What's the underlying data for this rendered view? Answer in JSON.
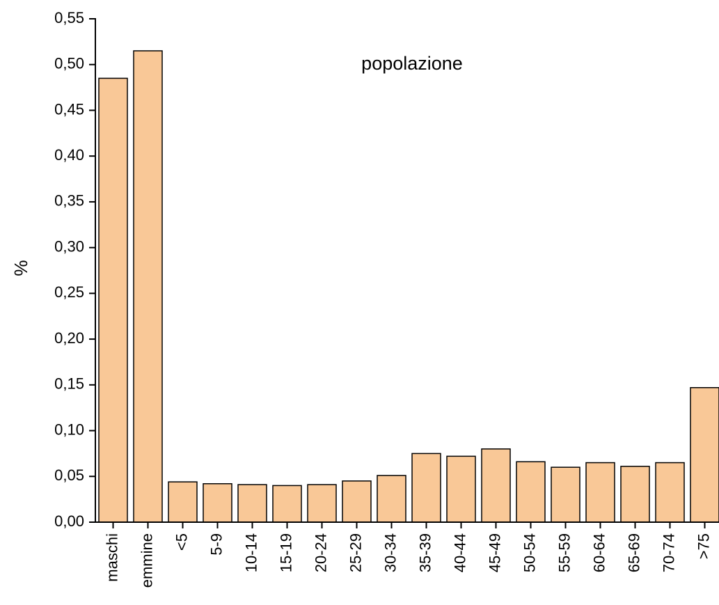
{
  "chart_data": {
    "type": "bar",
    "annotation": "popolazione",
    "y_label": "%",
    "categories": [
      "maschi",
      "emmine",
      "<5",
      "5-9",
      "10-14",
      "15-19",
      "20-24",
      "25-29",
      "30-34",
      "35-39",
      "40-44",
      "45-49",
      "50-54",
      "55-59",
      "60-64",
      "65-69",
      "70-74",
      ">75"
    ],
    "values": [
      0.485,
      0.515,
      0.044,
      0.042,
      0.041,
      0.04,
      0.041,
      0.045,
      0.051,
      0.075,
      0.072,
      0.08,
      0.066,
      0.06,
      0.065,
      0.061,
      0.065,
      0.147
    ],
    "color": "#f9c897",
    "ylim": [
      0,
      0.55
    ],
    "yticks": [
      {
        "value": 0,
        "label": "0,00"
      },
      {
        "value": 0.05,
        "label": "0,05"
      },
      {
        "value": 0.1,
        "label": "0,10"
      },
      {
        "value": 0.15,
        "label": "0,15"
      },
      {
        "value": 0.2,
        "label": "0,20"
      },
      {
        "value": 0.25,
        "label": "0,25"
      },
      {
        "value": 0.3,
        "label": "0,30"
      },
      {
        "value": 0.35,
        "label": "0,35"
      },
      {
        "value": 0.4,
        "label": "0,40"
      },
      {
        "value": 0.45,
        "label": "0,45"
      },
      {
        "value": 0.5,
        "label": "0,50"
      },
      {
        "value": 0.55,
        "label": "0,55"
      }
    ],
    "grid": false
  }
}
